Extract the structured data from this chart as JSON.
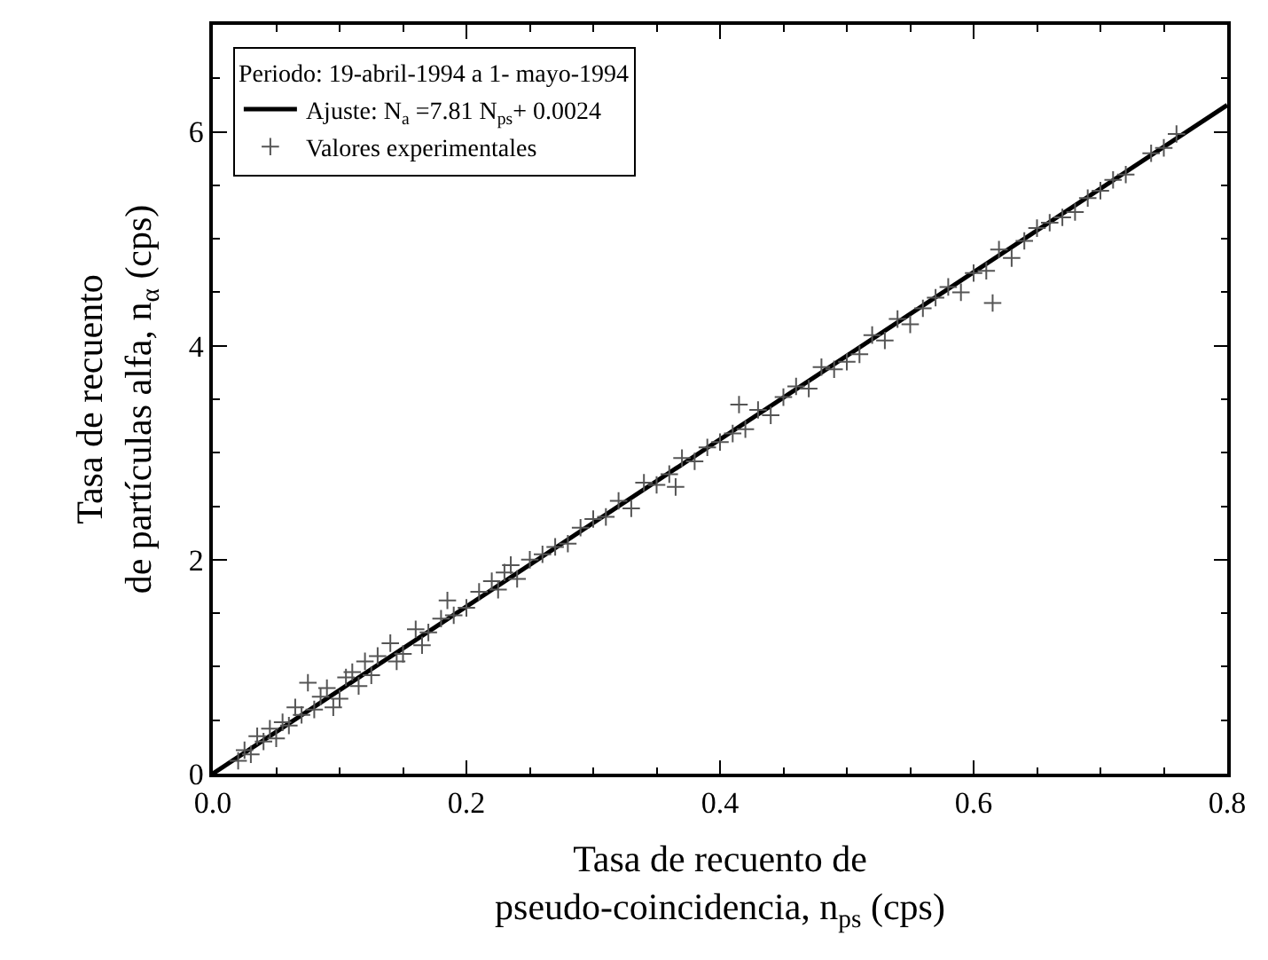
{
  "chart_data": {
    "type": "scatter",
    "xlabel": "Tasa de recuento de\npseudo-coincidencia, n$_{ps}$ (cps)",
    "ylabel": "Tasa de recuento\nde partículas alfa, n$_{α}$ (cps)",
    "legend_title": "Periodo: 19-abril-1994 a 1- mayo-1994",
    "xlim": [
      0,
      0.8
    ],
    "xticks": [
      {
        "value": 0,
        "label": "0.0"
      },
      0.2,
      0.4,
      0.6,
      0.8
    ],
    "ylim": [
      0,
      7
    ],
    "yticks": [
      0,
      2,
      4,
      6
    ],
    "legend": "top left",
    "series": [
      {
        "name": "Ajuste: N$_{a}$ =7.81 N$_{ps}$+ 0.0024",
        "type": "line",
        "color": "#000000",
        "line_style": "solid",
        "marker": "none",
        "x": [
          0,
          0.8
        ],
        "values": [
          0,
          6.25
        ]
      },
      {
        "name": "Valores experimentales",
        "color": "#555555",
        "marker": "cross",
        "x": [
          0.02,
          0.025,
          0.03,
          0.035,
          0.04,
          0.045,
          0.05,
          0.055,
          0.06,
          0.065,
          0.07,
          0.075,
          0.08,
          0.085,
          0.09,
          0.095,
          0.1,
          0.105,
          0.11,
          0.115,
          0.12,
          0.125,
          0.13,
          0.14,
          0.145,
          0.15,
          0.16,
          0.165,
          0.17,
          0.18,
          0.185,
          0.19,
          0.2,
          0.21,
          0.22,
          0.225,
          0.23,
          0.235,
          0.24,
          0.25,
          0.26,
          0.27,
          0.28,
          0.29,
          0.3,
          0.31,
          0.32,
          0.33,
          0.34,
          0.35,
          0.36,
          0.365,
          0.37,
          0.38,
          0.39,
          0.4,
          0.41,
          0.415,
          0.42,
          0.43,
          0.44,
          0.45,
          0.46,
          0.47,
          0.48,
          0.49,
          0.5,
          0.51,
          0.52,
          0.53,
          0.54,
          0.55,
          0.56,
          0.57,
          0.58,
          0.59,
          0.6,
          0.61,
          0.615,
          0.62,
          0.63,
          0.64,
          0.65,
          0.66,
          0.67,
          0.68,
          0.69,
          0.7,
          0.71,
          0.72,
          0.74,
          0.75,
          0.76
        ],
        "values": [
          0.12,
          0.22,
          0.18,
          0.35,
          0.3,
          0.42,
          0.33,
          0.48,
          0.45,
          0.62,
          0.55,
          0.85,
          0.6,
          0.72,
          0.8,
          0.62,
          0.7,
          0.9,
          0.95,
          0.82,
          1.05,
          0.92,
          1.1,
          1.22,
          1.05,
          1.12,
          1.35,
          1.2,
          1.32,
          1.45,
          1.62,
          1.48,
          1.55,
          1.7,
          1.8,
          1.72,
          1.88,
          1.95,
          1.82,
          2.0,
          2.05,
          2.12,
          2.15,
          2.3,
          2.38,
          2.4,
          2.55,
          2.48,
          2.72,
          2.7,
          2.8,
          2.68,
          2.95,
          2.92,
          3.05,
          3.1,
          3.18,
          3.45,
          3.22,
          3.4,
          3.35,
          3.52,
          3.62,
          3.6,
          3.8,
          3.78,
          3.85,
          3.92,
          4.1,
          4.05,
          4.25,
          4.2,
          4.35,
          4.45,
          4.55,
          4.5,
          4.68,
          4.7,
          4.4,
          4.9,
          4.82,
          4.98,
          5.1,
          5.15,
          5.2,
          5.25,
          5.38,
          5.45,
          5.55,
          5.6,
          5.8,
          5.85,
          5.98
        ]
      }
    ]
  }
}
